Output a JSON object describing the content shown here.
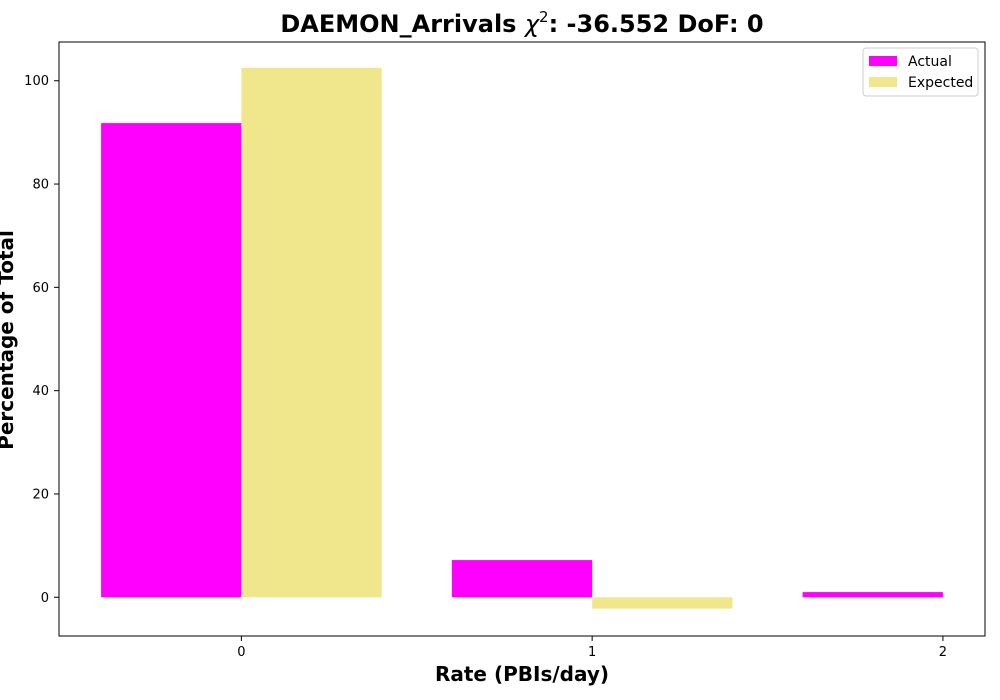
{
  "chart_data": {
    "type": "bar",
    "title": {
      "prefix": "DAEMON_Arrivals ",
      "chi_symbol": "χ",
      "chi_sup": "2",
      "suffix": ": -36.552 DoF: 0"
    },
    "xlabel": "Rate (PBIs/day)",
    "ylabel": "Percentage of Total",
    "categories": [
      "0",
      "1",
      "2"
    ],
    "series": [
      {
        "name": "Actual",
        "color": "#ff00ff",
        "values": [
          91.8,
          7.2,
          1.0
        ]
      },
      {
        "name": "Expected",
        "color": "#f0e68c",
        "values": [
          102.5,
          -2.2,
          0
        ]
      }
    ],
    "xlim": [
      -0.52,
      2.12
    ],
    "ylim": [
      -7.5,
      107.5
    ],
    "yticks": [
      0,
      20,
      40,
      60,
      80,
      100
    ],
    "grid": false,
    "legend_position": "top-right"
  }
}
